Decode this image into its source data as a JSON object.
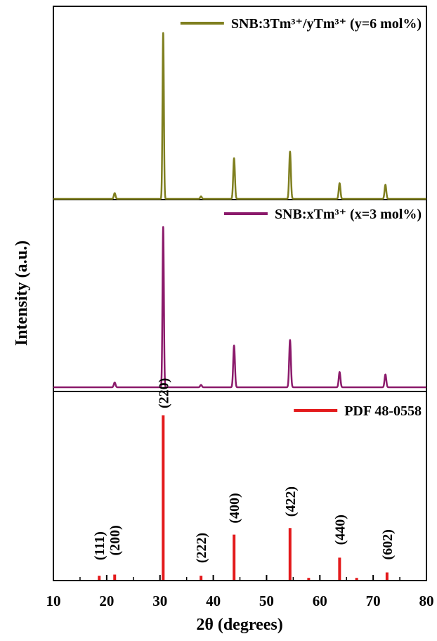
{
  "chart_data": {
    "type": "line",
    "xlabel": "2θ (degrees)",
    "ylabel": "Intensity (a.u.)",
    "xlim": [
      10,
      80
    ],
    "xticks": [
      "10",
      "20",
      "30",
      "40",
      "50",
      "60",
      "70",
      "80"
    ],
    "grid": false,
    "panels": [
      {
        "legend": "SNB:3Tm³⁺/yTm³⁺ (y=6 mol%)",
        "legend_placement": "top-right",
        "color": "#7f7f1f",
        "style": "line",
        "peaks": [
          {
            "x": 21.5,
            "y": 3.5
          },
          {
            "x": 30.6,
            "y": 100
          },
          {
            "x": 37.7,
            "y": 1.5
          },
          {
            "x": 43.9,
            "y": 24.5
          },
          {
            "x": 54.4,
            "y": 28.5
          },
          {
            "x": 63.7,
            "y": 9.5
          },
          {
            "x": 72.3,
            "y": 8.5
          }
        ]
      },
      {
        "legend": "SNB:xTm³⁺ (x=3 mol%)",
        "legend_placement": "top-right",
        "color": "#8b1a6b",
        "style": "line",
        "peaks": [
          {
            "x": 21.5,
            "y": 3
          },
          {
            "x": 30.6,
            "y": 100
          },
          {
            "x": 37.7,
            "y": 1.5
          },
          {
            "x": 43.9,
            "y": 26
          },
          {
            "x": 54.4,
            "y": 29.5
          },
          {
            "x": 63.7,
            "y": 9.5
          },
          {
            "x": 72.3,
            "y": 8
          }
        ]
      },
      {
        "legend": "PDF 48-0558",
        "legend_placement": "top-right",
        "color": "#e31a1c",
        "style": "stick",
        "peaks": [
          {
            "x": 18.6,
            "y": 2.5,
            "hkl": "(111)"
          },
          {
            "x": 21.5,
            "y": 3.2,
            "hkl": "(200)"
          },
          {
            "x": 30.6,
            "y": 100,
            "hkl": "(220)"
          },
          {
            "x": 37.7,
            "y": 2.5,
            "hkl": "(222)"
          },
          {
            "x": 43.9,
            "y": 27.5,
            "hkl": "(400)"
          },
          {
            "x": 54.4,
            "y": 31.5,
            "hkl": "(422)"
          },
          {
            "x": 57.9,
            "y": 1.2
          },
          {
            "x": 63.7,
            "y": 13.5,
            "hkl": "(440)"
          },
          {
            "x": 66.9,
            "y": 1.2
          },
          {
            "x": 72.6,
            "y": 4.5,
            "hkl": "(602)"
          }
        ]
      }
    ]
  }
}
